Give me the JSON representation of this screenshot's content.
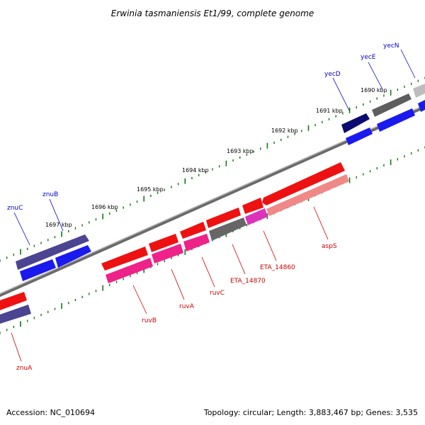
{
  "title": "Erwinia tasmaniensis Et1/99, complete genome",
  "footer": {
    "accession": "Accession: NC_010694",
    "topology": "Topology: circular; Length: 3,883,467 bp; Genes: 3,535"
  },
  "colors": {
    "forward_label": "#0000cc",
    "reverse_label": "#cc0000",
    "backbone": "#888888",
    "tick": "#117711"
  },
  "ticks": [
    {
      "label": "1690 kbp"
    },
    {
      "label": "1691 kbp"
    },
    {
      "label": "1692 kbp"
    },
    {
      "label": "1693 kbp"
    },
    {
      "label": "1694 kbp"
    },
    {
      "label": "1695 kbp"
    },
    {
      "label": "1696 kbp"
    },
    {
      "label": "1697 kbp"
    }
  ],
  "genes": [
    {
      "name": "yecN",
      "strand": "forward"
    },
    {
      "name": "yecE",
      "strand": "forward"
    },
    {
      "name": "yecD",
      "strand": "forward"
    },
    {
      "name": "znuB",
      "strand": "forward"
    },
    {
      "name": "znuC",
      "strand": "forward"
    },
    {
      "name": "aspS",
      "strand": "reverse"
    },
    {
      "name": "ETA_14860",
      "strand": "reverse"
    },
    {
      "name": "ETA_14870",
      "strand": "reverse"
    },
    {
      "name": "ruvC",
      "strand": "reverse"
    },
    {
      "name": "ruvA",
      "strand": "reverse"
    },
    {
      "name": "ruvB",
      "strand": "reverse"
    },
    {
      "name": "znuA",
      "strand": "reverse"
    }
  ]
}
